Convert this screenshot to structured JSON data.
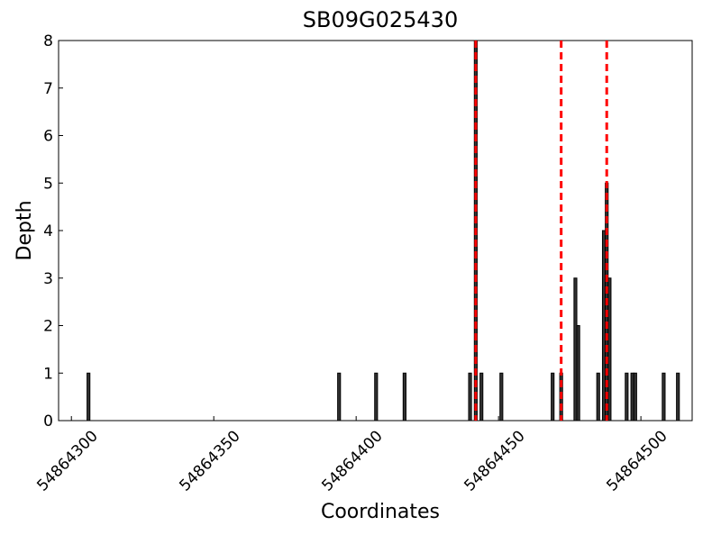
{
  "chart_data": {
    "type": "bar",
    "title": "SB09G025430",
    "xlabel": "Coordinates",
    "ylabel": "Depth",
    "x": [
      54864306,
      54864394,
      54864407,
      54864417,
      54864440,
      54864442,
      54864444,
      54864451,
      54864469,
      54864472,
      54864477,
      54864478,
      54864485,
      54864487,
      54864488,
      54864489,
      54864495,
      54864497,
      54864498,
      54864508,
      54864513
    ],
    "values": [
      1,
      1,
      1,
      1,
      1,
      8,
      1,
      1,
      1,
      1,
      3,
      2,
      1,
      4,
      5,
      3,
      1,
      1,
      1,
      1,
      1
    ],
    "color": "#333333",
    "vlines": [
      54864442,
      54864472,
      54864488
    ],
    "vline_color": "#ff0000",
    "xlim": [
      54864295.5,
      54864518
    ],
    "xticks": [
      54864300,
      54864350,
      54864400,
      54864450,
      54864500
    ],
    "ylim": [
      0,
      8
    ],
    "yticks": [
      0,
      1,
      2,
      3,
      4,
      5,
      6,
      7,
      8
    ]
  }
}
